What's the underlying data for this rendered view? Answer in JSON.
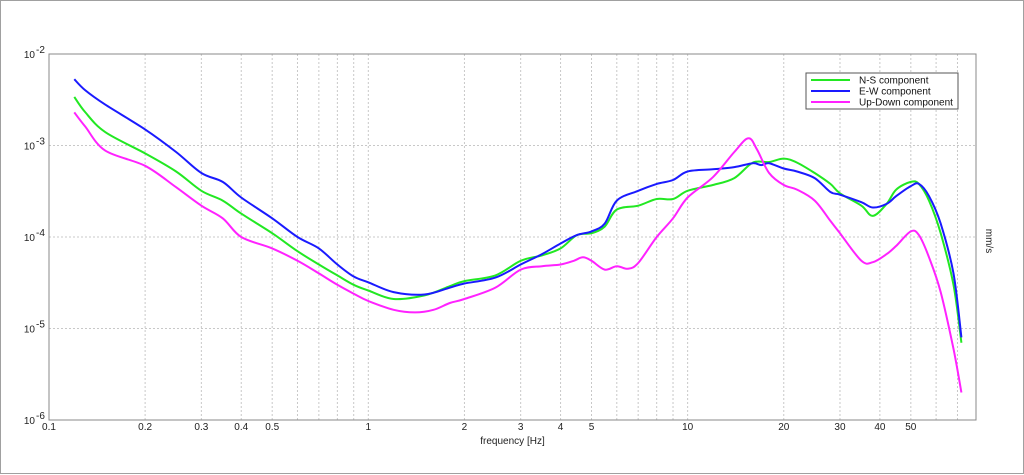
{
  "chart_data": {
    "type": "line",
    "title": "",
    "xlabel": "frequency [Hz]",
    "ylabel": "mm/s",
    "xscale": "log",
    "yscale": "log",
    "xlim": [
      0.1,
      80
    ],
    "ylim": [
      1e-06,
      0.01
    ],
    "grid": true,
    "legend_position": "top-right",
    "x_tick_labels": [
      {
        "value": 0.1,
        "label": "0.1"
      },
      {
        "value": 0.2,
        "label": "0.2"
      },
      {
        "value": 0.3,
        "label": "0.3"
      },
      {
        "value": 0.4,
        "label": "0.4"
      },
      {
        "value": 0.5,
        "label": "0.5"
      },
      {
        "value": 1,
        "label": "1"
      },
      {
        "value": 2,
        "label": "2"
      },
      {
        "value": 3,
        "label": "3"
      },
      {
        "value": 4,
        "label": "4"
      },
      {
        "value": 5,
        "label": "5"
      },
      {
        "value": 10,
        "label": "10"
      },
      {
        "value": 20,
        "label": "20"
      },
      {
        "value": 30,
        "label": "30"
      },
      {
        "value": 40,
        "label": "40"
      },
      {
        "value": 50,
        "label": "50"
      }
    ],
    "y_tick_labels": [
      {
        "value": 0.01,
        "base": "10",
        "exp": "-2"
      },
      {
        "value": 0.001,
        "base": "10",
        "exp": "-3"
      },
      {
        "value": 0.0001,
        "base": "10",
        "exp": "-4"
      },
      {
        "value": 1e-05,
        "base": "10",
        "exp": "-5"
      },
      {
        "value": 1e-06,
        "base": "10",
        "exp": "-6"
      }
    ],
    "series": [
      {
        "name": "N-S component",
        "color": "#22e822",
        "points": [
          [
            0.12,
            0.0034
          ],
          [
            0.13,
            0.0023
          ],
          [
            0.15,
            0.0014
          ],
          [
            0.2,
            0.00082
          ],
          [
            0.25,
            0.00052
          ],
          [
            0.3,
            0.00032
          ],
          [
            0.35,
            0.00025
          ],
          [
            0.4,
            0.00018
          ],
          [
            0.5,
            0.00011
          ],
          [
            0.6,
            7e-05
          ],
          [
            0.7,
            5e-05
          ],
          [
            0.8,
            3.8e-05
          ],
          [
            0.9,
            3e-05
          ],
          [
            1.0,
            2.6e-05
          ],
          [
            1.2,
            2.1e-05
          ],
          [
            1.5,
            2.3e-05
          ],
          [
            1.8,
            2.9e-05
          ],
          [
            2.0,
            3.3e-05
          ],
          [
            2.5,
            3.8e-05
          ],
          [
            3.0,
            5.5e-05
          ],
          [
            3.5,
            6.3e-05
          ],
          [
            4.0,
            7.5e-05
          ],
          [
            4.5,
            0.000105
          ],
          [
            5.0,
            0.00011
          ],
          [
            5.5,
            0.00013
          ],
          [
            6.0,
            0.0002
          ],
          [
            7.0,
            0.00022
          ],
          [
            8.0,
            0.00026
          ],
          [
            9.0,
            0.00026
          ],
          [
            10.0,
            0.00032
          ],
          [
            12.0,
            0.00037
          ],
          [
            14.0,
            0.00044
          ],
          [
            16.0,
            0.00065
          ],
          [
            18.0,
            0.00066
          ],
          [
            20.0,
            0.00072
          ],
          [
            22.0,
            0.00065
          ],
          [
            25.0,
            0.0005
          ],
          [
            28.0,
            0.00038
          ],
          [
            30.0,
            0.0003
          ],
          [
            35.0,
            0.00022
          ],
          [
            38.0,
            0.00017
          ],
          [
            42.0,
            0.00023
          ],
          [
            45.0,
            0.00033
          ],
          [
            50.0,
            0.0004
          ],
          [
            53.0,
            0.00038
          ],
          [
            57.0,
            0.00025
          ],
          [
            62.0,
            0.00011
          ],
          [
            68.0,
            3e-05
          ],
          [
            72.0,
            7e-06
          ]
        ]
      },
      {
        "name": "E-W component",
        "color": "#1a1aff",
        "points": [
          [
            0.12,
            0.0053
          ],
          [
            0.13,
            0.004
          ],
          [
            0.15,
            0.0028
          ],
          [
            0.2,
            0.0015
          ],
          [
            0.25,
            0.00085
          ],
          [
            0.3,
            0.0005
          ],
          [
            0.35,
            0.0004
          ],
          [
            0.4,
            0.00027
          ],
          [
            0.5,
            0.00016
          ],
          [
            0.6,
            0.0001
          ],
          [
            0.7,
            7.5e-05
          ],
          [
            0.8,
            5e-05
          ],
          [
            0.9,
            3.7e-05
          ],
          [
            1.0,
            3.2e-05
          ],
          [
            1.2,
            2.5e-05
          ],
          [
            1.5,
            2.35e-05
          ],
          [
            1.8,
            2.8e-05
          ],
          [
            2.0,
            3.1e-05
          ],
          [
            2.5,
            3.6e-05
          ],
          [
            3.0,
            5e-05
          ],
          [
            3.5,
            6.5e-05
          ],
          [
            4.0,
            8.5e-05
          ],
          [
            4.5,
            0.000105
          ],
          [
            5.0,
            0.000115
          ],
          [
            5.5,
            0.00014
          ],
          [
            6.0,
            0.00025
          ],
          [
            7.0,
            0.00032
          ],
          [
            8.0,
            0.00038
          ],
          [
            9.0,
            0.00042
          ],
          [
            10.0,
            0.00052
          ],
          [
            12.0,
            0.00055
          ],
          [
            14.0,
            0.00058
          ],
          [
            16.0,
            0.00064
          ],
          [
            17.0,
            0.00061
          ],
          [
            18.0,
            0.00064
          ],
          [
            20.0,
            0.00056
          ],
          [
            22.0,
            0.00052
          ],
          [
            25.0,
            0.00044
          ],
          [
            28.0,
            0.00031
          ],
          [
            30.0,
            0.00029
          ],
          [
            35.0,
            0.00024
          ],
          [
            38.0,
            0.00021
          ],
          [
            42.0,
            0.00023
          ],
          [
            45.0,
            0.00028
          ],
          [
            50.0,
            0.00036
          ],
          [
            53.0,
            0.00038
          ],
          [
            57.0,
            0.00028
          ],
          [
            62.0,
            0.00014
          ],
          [
            68.0,
            4e-05
          ],
          [
            72.0,
            8e-06
          ]
        ]
      },
      {
        "name": "Up-Down component",
        "color": "#ff22ff",
        "points": [
          [
            0.12,
            0.0023
          ],
          [
            0.13,
            0.0016
          ],
          [
            0.15,
            0.00088
          ],
          [
            0.2,
            0.0006
          ],
          [
            0.25,
            0.00035
          ],
          [
            0.3,
            0.00022
          ],
          [
            0.35,
            0.00016
          ],
          [
            0.4,
            0.0001
          ],
          [
            0.5,
            7.5e-05
          ],
          [
            0.6,
            5.5e-05
          ],
          [
            0.7,
            4e-05
          ],
          [
            0.8,
            3e-05
          ],
          [
            0.9,
            2.4e-05
          ],
          [
            1.0,
            2e-05
          ],
          [
            1.2,
            1.6e-05
          ],
          [
            1.4,
            1.5e-05
          ],
          [
            1.6,
            1.6e-05
          ],
          [
            1.8,
            1.9e-05
          ],
          [
            2.0,
            2.1e-05
          ],
          [
            2.5,
            2.8e-05
          ],
          [
            3.0,
            4.4e-05
          ],
          [
            3.5,
            4.8e-05
          ],
          [
            4.0,
            5e-05
          ],
          [
            4.4,
            5.5e-05
          ],
          [
            4.7,
            6e-05
          ],
          [
            5.0,
            5.5e-05
          ],
          [
            5.5,
            4.4e-05
          ],
          [
            6.0,
            4.8e-05
          ],
          [
            6.5,
            4.5e-05
          ],
          [
            7.0,
            5.2e-05
          ],
          [
            8.0,
            0.0001
          ],
          [
            9.0,
            0.00016
          ],
          [
            10.0,
            0.00027
          ],
          [
            12.0,
            0.00045
          ],
          [
            14.0,
            0.00085
          ],
          [
            15.5,
            0.0012
          ],
          [
            16.5,
            0.0009
          ],
          [
            18.0,
            0.0005
          ],
          [
            20.0,
            0.00037
          ],
          [
            22.0,
            0.00033
          ],
          [
            25.0,
            0.00025
          ],
          [
            28.0,
            0.00015
          ],
          [
            30.0,
            0.00011
          ],
          [
            35.0,
            5.5e-05
          ],
          [
            38.0,
            5.3e-05
          ],
          [
            42.0,
            6.5e-05
          ],
          [
            45.0,
            8e-05
          ],
          [
            50.0,
            0.000115
          ],
          [
            53.0,
            0.000105
          ],
          [
            57.0,
            6e-05
          ],
          [
            62.0,
            2.5e-05
          ],
          [
            68.0,
            6e-06
          ],
          [
            72.0,
            2e-06
          ]
        ]
      }
    ]
  }
}
